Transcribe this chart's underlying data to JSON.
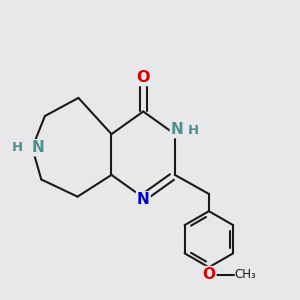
{
  "background_color": "#e8e8ea",
  "bond_color": "#1a1a1a",
  "bond_width": 1.5,
  "atom_colors": {
    "N_blue": "#0000cc",
    "NH_teal": "#4a9090",
    "O": "#dd0000",
    "C": "#1a1a1a"
  },
  "figsize": [
    3.0,
    3.0
  ],
  "dpi": 100,
  "xlim": [
    0.0,
    6.0
  ],
  "ylim": [
    0.0,
    6.5
  ]
}
